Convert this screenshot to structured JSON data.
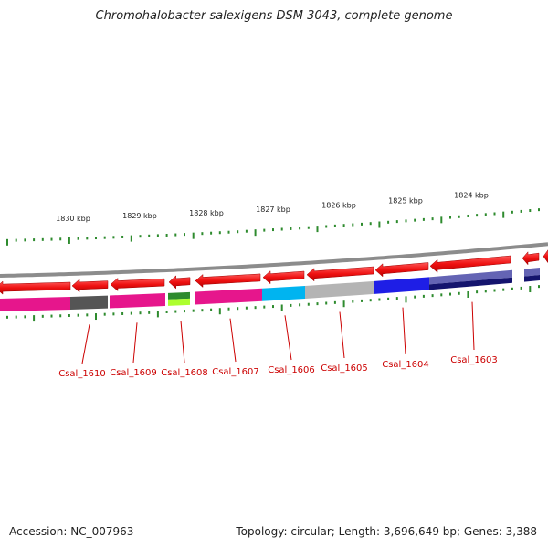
{
  "title": "Chromohalobacter salexigens DSM 3043, complete genome",
  "footer": {
    "accession": "Accession: NC_007963",
    "summary": "Topology: circular; Length: 3,696,649 bp; Genes: 3,388"
  },
  "scale_labels": [
    "1830 kbp",
    "1829 kbp",
    "1828 kbp",
    "1827 kbp",
    "1826 kbp",
    "1825 kbp",
    "1824 kbp"
  ],
  "gene_labels": [
    "Csal_1610",
    "Csal_1609",
    "Csal_1608",
    "Csal_1607",
    "Csal_1606",
    "Csal_1605",
    "Csal_1604",
    "Csal_1603"
  ],
  "colors": {
    "backbone": "#8c8c8c",
    "gene_arrow": "#ee1111",
    "tick": "#2e8b2e",
    "label": "#cc0000",
    "categories": [
      "#e6168c",
      "#555555",
      "#e6168c",
      "#2e8b2e",
      "#adff2f",
      "#e6168c",
      "#00b4f0",
      "#b4b4b4",
      "#1e1ee6",
      "#6464b4",
      "#14146e"
    ]
  }
}
